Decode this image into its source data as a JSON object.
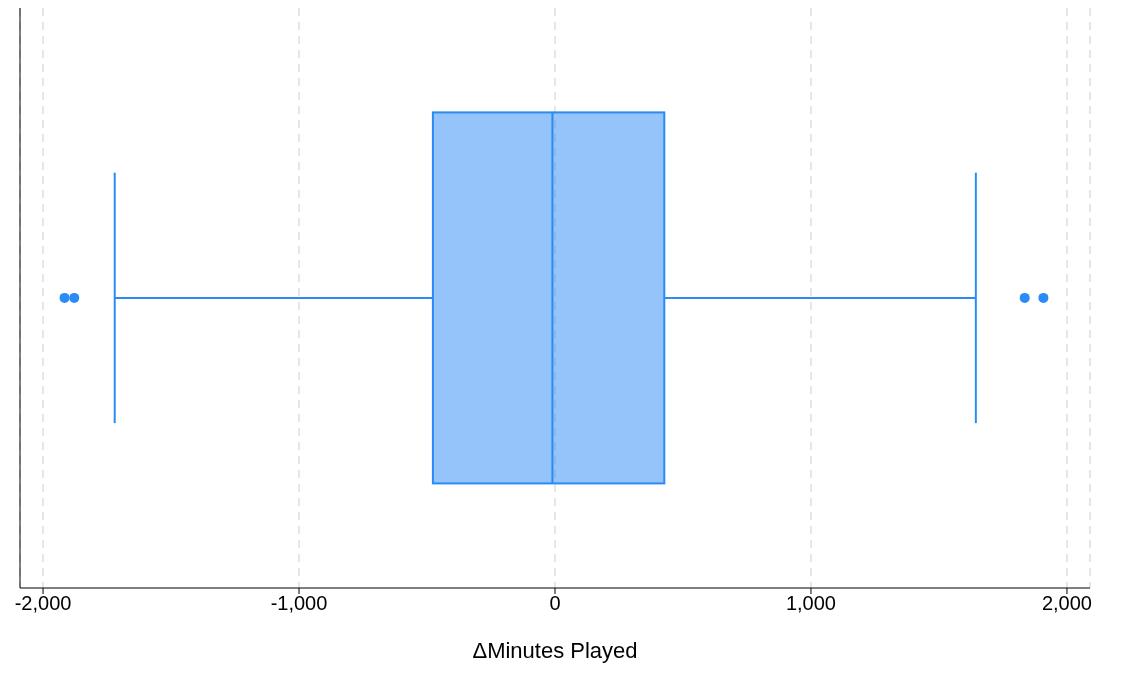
{
  "chart_data": {
    "type": "box",
    "orientation": "horizontal",
    "xlabel": "ΔMinutes Played",
    "categories": [
      null
    ],
    "color": "#2a8af6",
    "boxes": [
      {
        "low": -1720,
        "q1": -477,
        "median": -10,
        "q3": 427,
        "high": 1644,
        "outliers": [
          -1916,
          -1878,
          1835,
          1908
        ]
      }
    ],
    "xlim": [
      -2090,
      2090
    ],
    "xticks": [
      {
        "value": -2000,
        "label": "-2,000"
      },
      {
        "value": -1000,
        "label": "-1,000"
      },
      {
        "value": 0,
        "label": "0"
      },
      {
        "value": 1000,
        "label": "1,000"
      },
      {
        "value": 2000,
        "label": "2,000"
      }
    ],
    "grid": "x"
  }
}
